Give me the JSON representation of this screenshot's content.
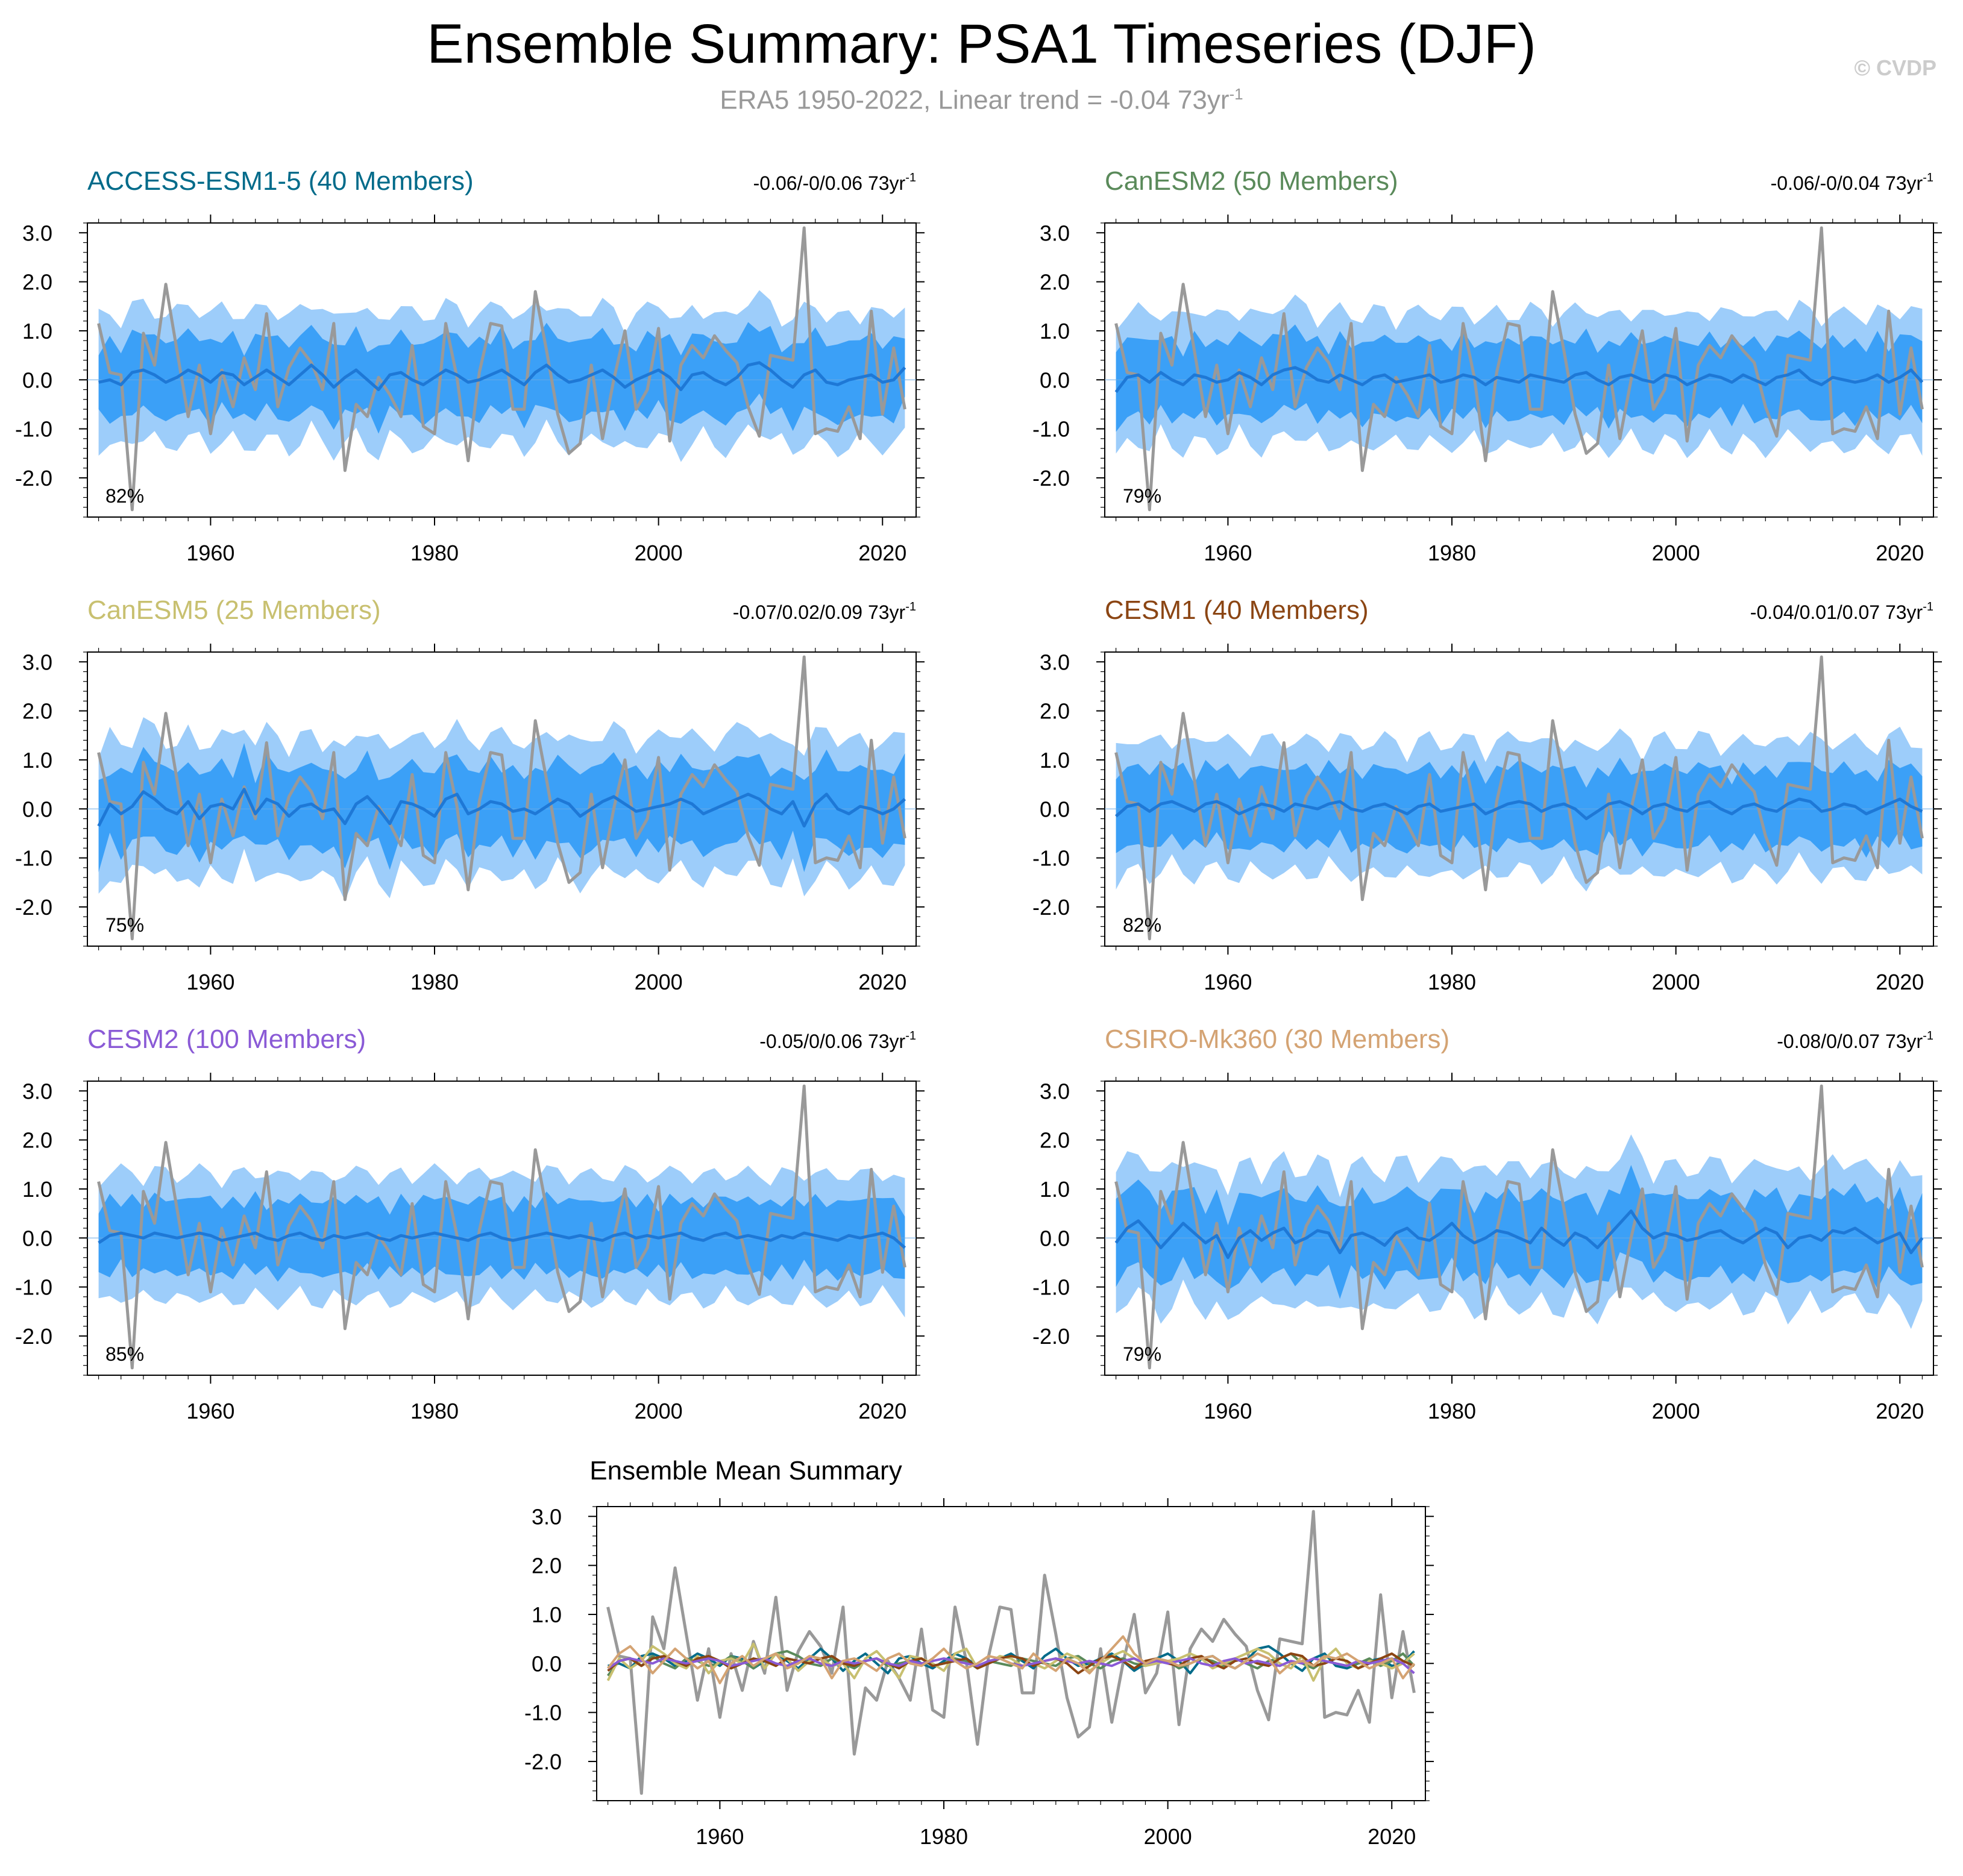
{
  "title": "Ensemble Summary: PSA1 Timeseries (DJF)",
  "subtitle_text": "ERA5 1950-2022, Linear trend = -0.04 73yr",
  "subtitle_sup": "-1",
  "watermark": "© CVDP",
  "colors": {
    "obs": "#999999",
    "mean": "#1e78d6",
    "inner_band": "#3ba0f7",
    "outer_band": "#9dcdfa"
  },
  "chart_data": [
    {
      "type": "area",
      "panel": "ACCESS-ESM1-5",
      "title": "ACCESS-ESM1-5 (40 Members)",
      "title_color": "#006b8a",
      "trend_label": "-0.06/-0/0.06 73yr",
      "trend_sup": "-1",
      "percent_label": "82%",
      "ylim": [
        -2.8,
        3.2
      ],
      "yticks": [
        "3.0",
        "2.0",
        "1.0",
        "0.0",
        "-1.0",
        "-2.0"
      ],
      "xlim": [
        1949,
        2023
      ],
      "xticks": [
        "1960",
        "1980",
        "2000",
        "2020"
      ],
      "ens_mean": [
        -0.05,
        0.0,
        -0.1,
        0.15,
        0.2,
        0.1,
        -0.05,
        0.05,
        0.2,
        0.1,
        -0.05,
        0.15,
        0.1,
        -0.1,
        0.05,
        0.2,
        0.05,
        -0.1,
        0.1,
        0.3,
        0.1,
        -0.15,
        0.05,
        0.2,
        0.0,
        -0.2,
        0.1,
        0.15,
        0.0,
        -0.1,
        0.05,
        0.2,
        0.1,
        -0.05,
        0.0,
        0.1,
        0.2,
        0.05,
        -0.1,
        0.15,
        0.3,
        0.1,
        -0.05,
        0.0,
        0.1,
        0.2,
        0.05,
        -0.15,
        0.0,
        0.1,
        0.2,
        0.05,
        -0.2,
        0.1,
        0.15,
        0.0,
        -0.1,
        0.05,
        0.3,
        0.35,
        0.2,
        0.0,
        -0.15,
        0.1,
        0.2,
        -0.05,
        -0.1,
        0.0,
        0.05,
        0.1,
        -0.05,
        0.0,
        0.25
      ],
      "band_scale": 1.0
    },
    {
      "type": "area",
      "panel": "CanESM2",
      "title": "CanESM2 (50 Members)",
      "title_color": "#5a8a5a",
      "trend_label": "-0.06/-0/0.04 73yr",
      "trend_sup": "-1",
      "percent_label": "79%",
      "ylim": [
        -2.8,
        3.2
      ],
      "yticks": [
        "3.0",
        "2.0",
        "1.0",
        "0.0",
        "-1.0",
        "-2.0"
      ],
      "xlim": [
        1949,
        2023
      ],
      "xticks": [
        "1960",
        "1980",
        "2000",
        "2020"
      ],
      "ens_mean": [
        -0.25,
        0.05,
        0.1,
        -0.05,
        0.15,
        0.0,
        -0.1,
        0.1,
        0.05,
        -0.05,
        0.0,
        0.15,
        0.05,
        -0.1,
        0.1,
        0.2,
        0.25,
        0.15,
        0.0,
        -0.05,
        0.1,
        0.0,
        -0.1,
        0.05,
        0.1,
        -0.05,
        0.0,
        0.05,
        0.1,
        -0.05,
        0.0,
        0.1,
        0.05,
        -0.1,
        0.05,
        0.0,
        -0.05,
        0.1,
        0.05,
        0.0,
        -0.05,
        0.1,
        0.15,
        0.0,
        -0.1,
        0.05,
        0.1,
        0.0,
        -0.05,
        0.1,
        0.05,
        -0.1,
        0.0,
        0.1,
        0.05,
        -0.05,
        0.1,
        0.0,
        -0.1,
        0.05,
        0.1,
        0.2,
        0.0,
        -0.1,
        0.05,
        0.0,
        -0.05,
        0.0,
        0.1,
        -0.05,
        0.05,
        0.2,
        -0.05
      ],
      "band_scale": 1.0
    },
    {
      "type": "area",
      "panel": "CanESM5",
      "title": "CanESM5 (25 Members)",
      "title_color": "#c8c070",
      "trend_label": "-0.07/0.02/0.09 73yr",
      "trend_sup": "-1",
      "percent_label": "75%",
      "ylim": [
        -2.8,
        3.2
      ],
      "yticks": [
        "3.0",
        "2.0",
        "1.0",
        "0.0",
        "-1.0",
        "-2.0"
      ],
      "xlim": [
        1949,
        2023
      ],
      "xticks": [
        "1960",
        "1980",
        "2000",
        "2020"
      ],
      "ens_mean": [
        -0.35,
        0.1,
        -0.1,
        0.05,
        0.35,
        0.2,
        0.0,
        -0.1,
        0.15,
        -0.2,
        0.05,
        0.1,
        0.0,
        0.4,
        -0.1,
        0.2,
        0.1,
        -0.15,
        0.05,
        0.1,
        -0.05,
        0.0,
        -0.3,
        0.1,
        0.25,
        0.0,
        -0.3,
        0.15,
        0.1,
        0.0,
        -0.15,
        0.2,
        0.3,
        -0.1,
        0.0,
        0.15,
        0.1,
        -0.05,
        0.0,
        -0.1,
        0.05,
        0.2,
        0.1,
        -0.15,
        0.0,
        0.15,
        0.25,
        0.1,
        -0.05,
        0.0,
        0.05,
        0.1,
        0.2,
        0.1,
        -0.1,
        0.0,
        0.1,
        0.2,
        0.3,
        0.2,
        0.0,
        -0.1,
        0.15,
        -0.35,
        0.1,
        0.3,
        0.0,
        -0.1,
        0.05,
        0.0,
        -0.1,
        0.0,
        0.2
      ],
      "band_scale": 1.05
    },
    {
      "type": "area",
      "panel": "CESM1",
      "title": "CESM1 (40 Members)",
      "title_color": "#8b4513",
      "trend_label": "-0.04/0.01/0.07 73yr",
      "trend_sup": "-1",
      "percent_label": "82%",
      "ylim": [
        -2.8,
        3.2
      ],
      "yticks": [
        "3.0",
        "2.0",
        "1.0",
        "0.0",
        "-1.0",
        "-2.0"
      ],
      "xlim": [
        1949,
        2023
      ],
      "xticks": [
        "1960",
        "1980",
        "2000",
        "2020"
      ],
      "ens_mean": [
        -0.15,
        0.05,
        0.1,
        -0.05,
        0.1,
        0.15,
        0.05,
        -0.05,
        0.1,
        0.15,
        0.05,
        -0.1,
        0.0,
        0.1,
        0.05,
        -0.05,
        0.1,
        0.05,
        0.0,
        0.1,
        0.15,
        0.0,
        -0.05,
        0.05,
        0.1,
        0.0,
        -0.1,
        0.05,
        0.1,
        -0.05,
        0.0,
        0.05,
        0.1,
        -0.1,
        0.0,
        0.1,
        0.15,
        0.1,
        -0.05,
        0.05,
        0.1,
        0.0,
        -0.2,
        -0.05,
        0.1,
        0.15,
        0.05,
        -0.1,
        0.05,
        0.1,
        0.0,
        -0.05,
        0.1,
        0.15,
        0.0,
        -0.1,
        0.05,
        0.1,
        0.0,
        -0.05,
        0.1,
        0.2,
        0.15,
        -0.05,
        0.0,
        0.1,
        0.05,
        -0.1,
        0.0,
        0.1,
        0.2,
        0.05,
        -0.05
      ],
      "band_scale": 1.0
    },
    {
      "type": "area",
      "panel": "CESM2",
      "title": "CESM2 (100 Members)",
      "title_color": "#8a5ad6",
      "trend_label": "-0.05/0/0.06 73yr",
      "trend_sup": "-1",
      "percent_label": "85%",
      "ylim": [
        -2.8,
        3.2
      ],
      "yticks": [
        "3.0",
        "2.0",
        "1.0",
        "0.0",
        "-1.0",
        "-2.0"
      ],
      "xlim": [
        1949,
        2023
      ],
      "xticks": [
        "1960",
        "1980",
        "2000",
        "2020"
      ],
      "ens_mean": [
        -0.1,
        0.05,
        0.1,
        0.05,
        0.0,
        0.1,
        0.05,
        0.0,
        0.05,
        0.1,
        0.05,
        -0.05,
        0.0,
        0.05,
        0.1,
        0.0,
        -0.05,
        0.05,
        0.1,
        0.0,
        -0.05,
        0.05,
        0.0,
        0.05,
        0.1,
        0.0,
        -0.05,
        0.05,
        0.0,
        0.05,
        0.1,
        0.05,
        0.0,
        -0.05,
        0.05,
        0.1,
        0.0,
        -0.05,
        0.0,
        0.05,
        0.1,
        0.05,
        0.0,
        0.05,
        0.0,
        -0.05,
        0.05,
        0.1,
        0.0,
        0.05,
        0.0,
        0.05,
        0.1,
        0.0,
        -0.05,
        0.05,
        0.1,
        0.0,
        0.05,
        0.0,
        -0.05,
        0.05,
        0.0,
        0.1,
        0.05,
        0.0,
        -0.05,
        0.05,
        0.0,
        0.05,
        0.1,
        0.0,
        -0.2
      ],
      "band_scale": 0.95
    },
    {
      "type": "area",
      "panel": "CSIRO-Mk360",
      "title": "CSIRO-Mk360 (30 Members)",
      "title_color": "#d4a373",
      "trend_label": "-0.08/0/0.07 73yr",
      "trend_sup": "-1",
      "percent_label": "79%",
      "ylim": [
        -2.8,
        3.2
      ],
      "yticks": [
        "3.0",
        "2.0",
        "1.0",
        "0.0",
        "-1.0",
        "-2.0"
      ],
      "xlim": [
        1949,
        2023
      ],
      "xticks": [
        "1960",
        "1980",
        "2000",
        "2020"
      ],
      "ens_mean": [
        -0.1,
        0.2,
        0.35,
        0.1,
        -0.2,
        0.05,
        0.3,
        0.1,
        -0.1,
        0.05,
        -0.4,
        0.0,
        0.15,
        -0.05,
        0.1,
        0.2,
        -0.1,
        0.0,
        0.15,
        0.1,
        -0.3,
        0.05,
        0.1,
        0.0,
        -0.15,
        0.1,
        0.2,
        0.0,
        -0.05,
        0.1,
        0.3,
        0.05,
        -0.1,
        0.0,
        0.15,
        0.1,
        0.0,
        -0.1,
        0.2,
        0.0,
        -0.15,
        0.1,
        0.0,
        -0.2,
        0.05,
        0.3,
        0.55,
        0.2,
        0.0,
        0.1,
        0.05,
        -0.05,
        0.0,
        0.1,
        0.15,
        0.0,
        -0.1,
        0.05,
        0.2,
        0.1,
        -0.2,
        0.0,
        0.05,
        -0.05,
        0.15,
        0.1,
        0.2,
        0.05,
        -0.1,
        0.0,
        0.1,
        -0.3,
        0.0
      ],
      "band_scale": 1.05
    },
    {
      "type": "line",
      "panel": "summary",
      "title": "Ensemble Mean Summary",
      "ylim": [
        -2.8,
        3.2
      ],
      "yticks": [
        "3.0",
        "2.0",
        "1.0",
        "0.0",
        "-1.0",
        "-2.0"
      ],
      "xlim": [
        1949,
        2023
      ],
      "xticks": [
        "1960",
        "1980",
        "2000",
        "2020"
      ]
    }
  ],
  "obs_x_start": 1950,
  "obs": [
    1.15,
    0.15,
    0.1,
    -2.65,
    0.95,
    0.3,
    1.95,
    0.6,
    -0.75,
    0.3,
    -1.1,
    0.2,
    -0.55,
    0.45,
    -0.2,
    1.35,
    -0.55,
    0.25,
    0.65,
    0.35,
    -0.2,
    1.15,
    -1.85,
    -0.5,
    -0.75,
    0.05,
    -0.3,
    -0.75,
    0.7,
    -0.95,
    -1.1,
    1.15,
    0.05,
    -1.65,
    0.15,
    1.15,
    1.1,
    -0.6,
    -0.6,
    1.8,
    0.6,
    -0.7,
    -1.5,
    -1.3,
    0.3,
    -1.2,
    0.0,
    1.0,
    -0.6,
    -0.2,
    1.05,
    -1.25,
    0.3,
    0.7,
    0.45,
    0.9,
    0.6,
    0.35,
    -0.55,
    -1.15,
    0.5,
    0.45,
    0.4,
    3.1,
    -1.1,
    -1.0,
    -1.05,
    -0.55,
    -1.2,
    1.4,
    -0.7,
    0.65,
    -0.6
  ],
  "summary_series_colors": [
    "#006b8a",
    "#5a8a5a",
    "#c8c070",
    "#8b4513",
    "#8a5ad6",
    "#d4a373"
  ]
}
